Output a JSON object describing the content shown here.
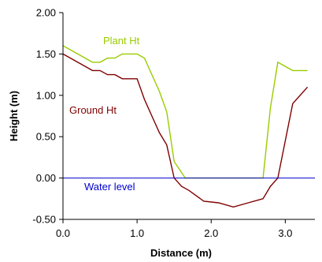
{
  "chart_data": {
    "type": "line",
    "title": "",
    "xlabel": "Distance (m)",
    "ylabel": "Height (m)",
    "xlim": [
      0,
      3.4
    ],
    "ylim": [
      -0.5,
      2.0
    ],
    "x_ticks": [
      0.0,
      1.0,
      2.0,
      3.0
    ],
    "x_tick_labels": [
      "0.0",
      "1.0",
      "2.0",
      "3.0"
    ],
    "y_ticks": [
      -0.5,
      0.0,
      0.5,
      1.0,
      1.5,
      2.0
    ],
    "y_tick_labels": [
      "-0.50",
      "0.00",
      "0.50",
      "1.00",
      "1.50",
      "2.00"
    ],
    "grid": false,
    "legend": "none",
    "series": [
      {
        "name": "Plant Ht",
        "color": "#99cc00",
        "points": [
          [
            0.0,
            1.6
          ],
          [
            0.2,
            1.5
          ],
          [
            0.4,
            1.4
          ],
          [
            0.5,
            1.4
          ],
          [
            0.6,
            1.45
          ],
          [
            0.7,
            1.45
          ],
          [
            0.8,
            1.5
          ],
          [
            1.0,
            1.5
          ],
          [
            1.1,
            1.45
          ],
          [
            1.2,
            1.25
          ],
          [
            1.3,
            1.05
          ],
          [
            1.4,
            0.8
          ],
          [
            1.5,
            0.2
          ],
          [
            1.65,
            0.0
          ],
          [
            2.0,
            0.0
          ],
          [
            2.5,
            0.0
          ],
          [
            2.7,
            0.0
          ],
          [
            2.8,
            0.85
          ],
          [
            2.9,
            1.4
          ],
          [
            3.1,
            1.3
          ],
          [
            3.3,
            1.3
          ]
        ]
      },
      {
        "name": "Ground Ht",
        "color": "#800000",
        "points": [
          [
            0.0,
            1.5
          ],
          [
            0.2,
            1.4
          ],
          [
            0.4,
            1.3
          ],
          [
            0.5,
            1.3
          ],
          [
            0.6,
            1.25
          ],
          [
            0.7,
            1.25
          ],
          [
            0.8,
            1.2
          ],
          [
            1.0,
            1.2
          ],
          [
            1.1,
            0.95
          ],
          [
            1.2,
            0.75
          ],
          [
            1.3,
            0.55
          ],
          [
            1.4,
            0.4
          ],
          [
            1.5,
            0.0
          ],
          [
            1.6,
            -0.1
          ],
          [
            1.7,
            -0.15
          ],
          [
            1.9,
            -0.28
          ],
          [
            2.1,
            -0.3
          ],
          [
            2.3,
            -0.35
          ],
          [
            2.5,
            -0.3
          ],
          [
            2.7,
            -0.25
          ],
          [
            2.8,
            -0.1
          ],
          [
            2.9,
            0.0
          ],
          [
            3.1,
            0.9
          ],
          [
            3.3,
            1.1
          ]
        ]
      },
      {
        "name": "Water level",
        "color": "#0000cc",
        "points": [
          [
            0.0,
            0.0
          ],
          [
            3.4,
            0.0
          ]
        ]
      }
    ]
  }
}
